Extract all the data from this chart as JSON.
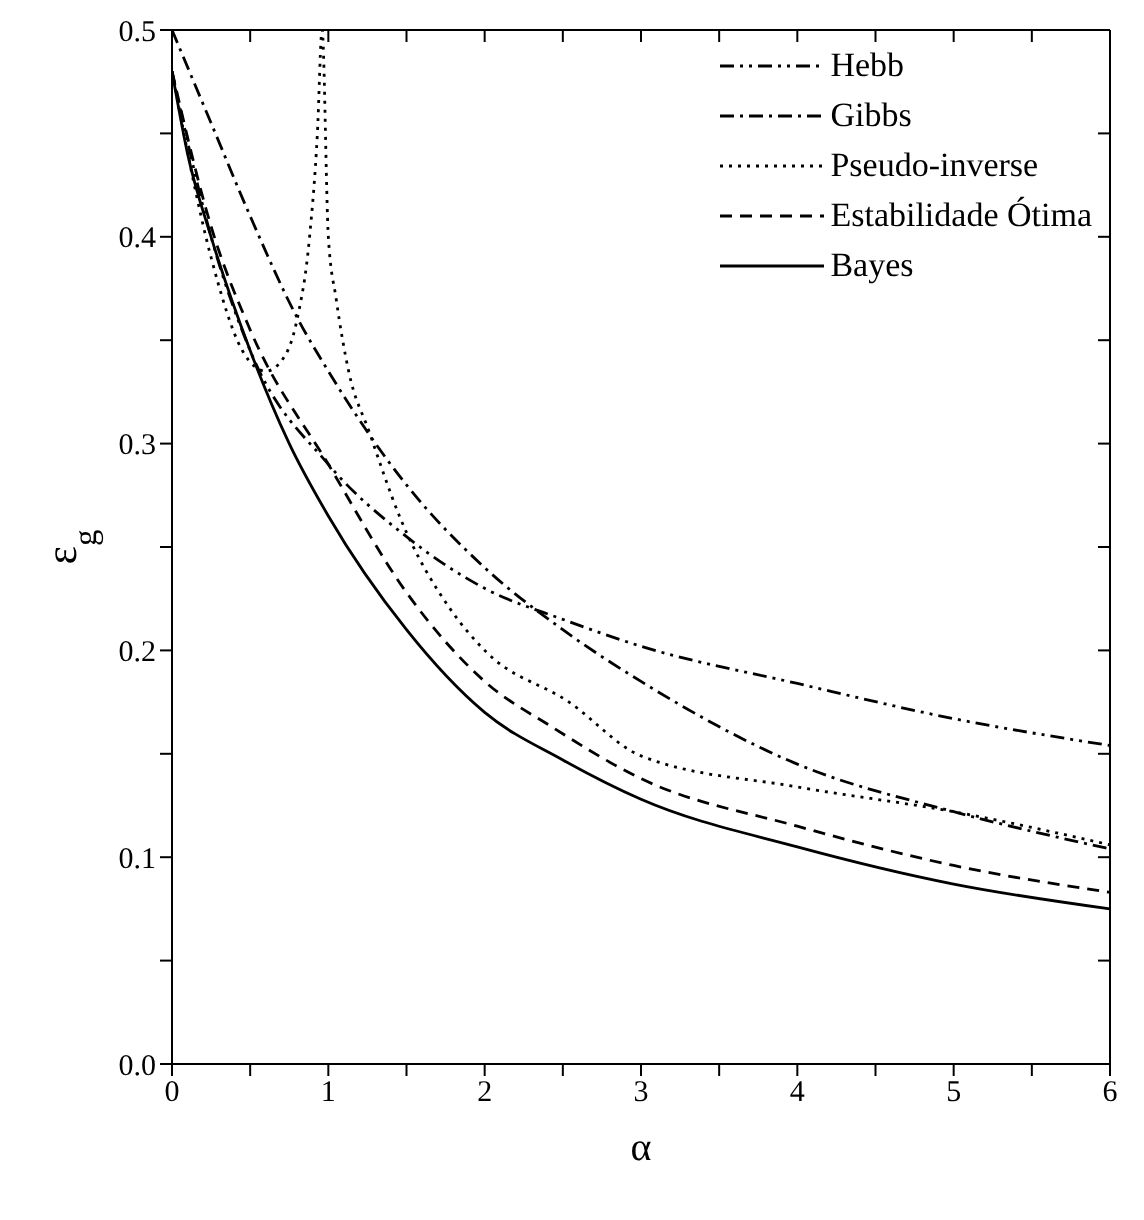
{
  "chart_data": {
    "type": "line",
    "xlabel": "α",
    "ylabel": "ε$_{g}$",
    "xlim": [
      0,
      6
    ],
    "ylim": [
      0,
      0.5
    ],
    "xticks": [
      0,
      {
        "value": 0.5,
        "label": null
      },
      1,
      {
        "value": 1.5,
        "label": null
      },
      2,
      {
        "value": 2.5,
        "label": null
      },
      3,
      {
        "value": 3.5,
        "label": null
      },
      4,
      {
        "value": 4.5,
        "label": null
      },
      5,
      {
        "value": 5.5,
        "label": null
      },
      6
    ],
    "yticks": [
      {
        "value": 0,
        "label": "0.0"
      },
      {
        "value": 0.05,
        "label": null
      },
      0.1,
      {
        "value": 0.15,
        "label": null
      },
      0.2,
      {
        "value": 0.25,
        "label": null
      },
      0.3,
      {
        "value": 0.35,
        "label": null
      },
      0.4,
      {
        "value": 0.45,
        "label": null
      },
      0.5
    ],
    "grid": false,
    "legend": "top right",
    "marker": "none",
    "series": [
      {
        "name": "Hebb",
        "color": "#000000",
        "line_style": "dashdotdot",
        "x": [
          0,
          0.25,
          0.5,
          1,
          1.5,
          2,
          2.5,
          3,
          4,
          5,
          6
        ],
        "values": [
          0.48,
          0.4,
          0.345,
          0.29,
          0.255,
          0.23,
          0.215,
          0.202,
          0.184,
          0.167,
          0.154
        ]
      },
      {
        "name": "Gibbs",
        "color": "#000000",
        "line_style": "dashdot",
        "x": [
          0,
          0.25,
          0.5,
          0.8,
          1,
          1.5,
          2,
          2.5,
          3,
          4,
          5,
          6
        ],
        "values": [
          0.5,
          0.455,
          0.41,
          0.361,
          0.335,
          0.28,
          0.24,
          0.21,
          0.185,
          0.145,
          0.122,
          0.104
        ]
      },
      {
        "name": "Pseudo-inverse",
        "color": "#000000",
        "line_style": "dotted",
        "x": [
          0,
          0.25,
          0.45,
          0.6,
          0.7,
          0.8,
          0.88,
          0.93,
          0.96,
          1,
          1.05,
          1.13,
          1.26,
          1.46,
          1.78,
          2,
          2.54,
          3,
          4,
          5,
          6
        ],
        "values": [
          0.48,
          0.39,
          0.345,
          0.335,
          0.34,
          0.36,
          0.4,
          0.45,
          0.5,
          0.4,
          0.37,
          0.335,
          0.306,
          0.264,
          0.22,
          0.2,
          0.175,
          0.149,
          0.134,
          0.122,
          0.106
        ]
      },
      {
        "name": "Estabilidade Ótima",
        "color": "#000000",
        "line_style": "dashed",
        "x": [
          0,
          0.25,
          0.5,
          1,
          1.5,
          2,
          2.43,
          3,
          4,
          5,
          6
        ],
        "values": [
          0.48,
          0.405,
          0.355,
          0.29,
          0.228,
          0.185,
          0.163,
          0.138,
          0.115,
          0.096,
          0.083
        ]
      },
      {
        "name": "Bayes",
        "color": "#000000",
        "line_style": "solid",
        "x": [
          0,
          0.1,
          0.25,
          0.5,
          0.75,
          1,
          1.5,
          2,
          2.5,
          3,
          4,
          5,
          6
        ],
        "values": [
          0.48,
          0.44,
          0.4,
          0.345,
          0.3,
          0.265,
          0.21,
          0.17,
          0.147,
          0.128,
          0.105,
          0.087,
          0.075
        ]
      }
    ]
  }
}
